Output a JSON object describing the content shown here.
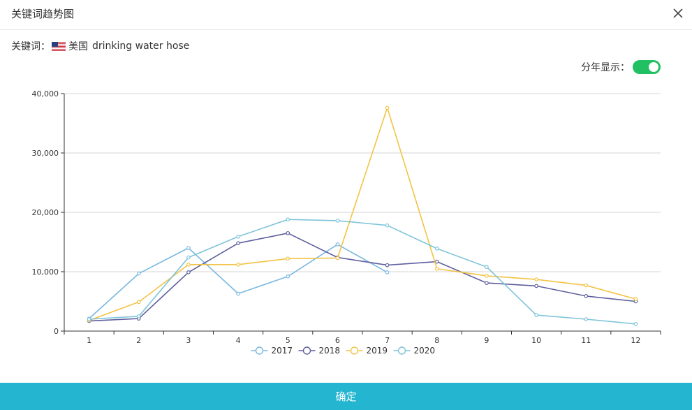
{
  "dialog": {
    "title": "关键词趋势图",
    "keyword_label": "关键词：",
    "keyword_country": "美国",
    "keyword_term": "drinking water hose",
    "toggle_label": "分年显示：",
    "toggle_on": true,
    "confirm_label": "确定"
  },
  "chart_data": {
    "type": "line",
    "categories": [
      "1",
      "2",
      "3",
      "4",
      "5",
      "6",
      "7",
      "8",
      "9",
      "10",
      "11",
      "12"
    ],
    "y_ticks": [
      "0",
      "10,000",
      "20,000",
      "30,000",
      "40,000"
    ],
    "ylim": [
      0,
      40000
    ],
    "grid": true,
    "legend_position": "bottom",
    "series": [
      {
        "name": "2017",
        "color": "#7ab8e0",
        "values": [
          2100,
          9700,
          14000,
          6300,
          9200,
          14600,
          9900,
          null,
          null,
          null,
          null,
          null
        ]
      },
      {
        "name": "2018",
        "color": "#5e5f9e",
        "values": [
          1700,
          2100,
          9900,
          14800,
          16500,
          12400,
          11100,
          11700,
          8100,
          7600,
          5900,
          5000
        ]
      },
      {
        "name": "2019",
        "color": "#f2c344",
        "values": [
          1800,
          4900,
          11200,
          11200,
          12200,
          12300,
          37600,
          10500,
          9300,
          8700,
          7700,
          5400
        ]
      },
      {
        "name": "2020",
        "color": "#7ec4d9",
        "values": [
          2000,
          2500,
          12400,
          15900,
          18800,
          18600,
          17800,
          13900,
          10800,
          2700,
          2000,
          1200
        ]
      }
    ]
  }
}
